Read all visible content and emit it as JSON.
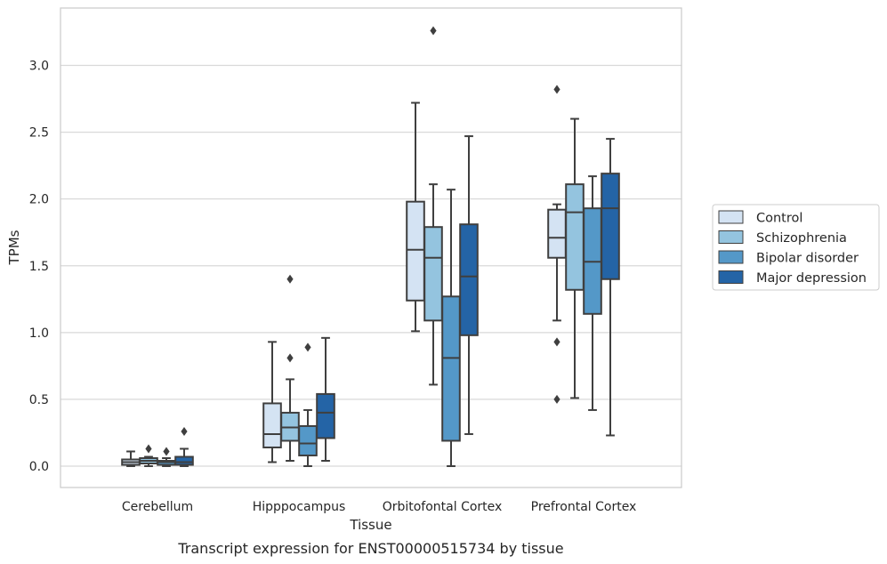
{
  "chart_data": {
    "type": "box",
    "caption": "Transcript expression for ENST00000515734 by tissue",
    "xlabel": "Tissue",
    "ylabel": "TPMs",
    "ylim": [
      -0.16,
      3.44
    ],
    "yticks": [
      0.0,
      0.5,
      1.0,
      1.5,
      2.0,
      2.5,
      3.0
    ],
    "ytick_labels": [
      "0.0",
      "0.5",
      "1.0",
      "1.5",
      "2.0",
      "2.5",
      "3.0"
    ],
    "grid": "horizontal",
    "legend_position": "right",
    "categories": [
      "Cerebellum",
      "Hipppocampus",
      "Orbitofontal Cortex",
      "Prefrontal Cortex"
    ],
    "series": [
      {
        "name": "Control",
        "color": "#d4e3f3",
        "boxes": [
          {
            "whislo": 0.0,
            "q1": 0.01,
            "med": 0.03,
            "q3": 0.05,
            "whishi": 0.11,
            "fliers": []
          },
          {
            "whislo": 0.03,
            "q1": 0.14,
            "med": 0.24,
            "q3": 0.47,
            "whishi": 0.93,
            "fliers": []
          },
          {
            "whislo": 1.01,
            "q1": 1.24,
            "med": 1.62,
            "q3": 1.98,
            "whishi": 2.72,
            "fliers": []
          },
          {
            "whislo": 1.09,
            "q1": 1.56,
            "med": 1.71,
            "q3": 1.92,
            "whishi": 1.96,
            "fliers": [
              0.5,
              0.93,
              2.82
            ]
          }
        ]
      },
      {
        "name": "Schizophrenia",
        "color": "#94c4df",
        "boxes": [
          {
            "whislo": 0.0,
            "q1": 0.02,
            "med": 0.04,
            "q3": 0.06,
            "whishi": 0.07,
            "fliers": [
              0.13
            ]
          },
          {
            "whislo": 0.04,
            "q1": 0.19,
            "med": 0.29,
            "q3": 0.4,
            "whishi": 0.65,
            "fliers": [
              0.81,
              1.4
            ]
          },
          {
            "whislo": 0.61,
            "q1": 1.09,
            "med": 1.56,
            "q3": 1.79,
            "whishi": 2.11,
            "fliers": [
              3.26
            ]
          },
          {
            "whislo": 0.51,
            "q1": 1.32,
            "med": 1.9,
            "q3": 2.11,
            "whishi": 2.6,
            "fliers": []
          }
        ]
      },
      {
        "name": "Bipolar disorder",
        "color": "#5498c8",
        "boxes": [
          {
            "whislo": 0.0,
            "q1": 0.01,
            "med": 0.03,
            "q3": 0.04,
            "whishi": 0.06,
            "fliers": [
              0.11
            ]
          },
          {
            "whislo": 0.0,
            "q1": 0.08,
            "med": 0.17,
            "q3": 0.3,
            "whishi": 0.42,
            "fliers": [
              0.89
            ]
          },
          {
            "whislo": 0.0,
            "q1": 0.19,
            "med": 0.81,
            "q3": 1.27,
            "whishi": 2.07,
            "fliers": []
          },
          {
            "whislo": 0.42,
            "q1": 1.14,
            "med": 1.53,
            "q3": 1.93,
            "whishi": 2.17,
            "fliers": []
          }
        ]
      },
      {
        "name": "Major depression",
        "color": "#2464a6",
        "boxes": [
          {
            "whislo": 0.0,
            "q1": 0.01,
            "med": 0.03,
            "q3": 0.07,
            "whishi": 0.13,
            "fliers": [
              0.26
            ]
          },
          {
            "whislo": 0.04,
            "q1": 0.21,
            "med": 0.4,
            "q3": 0.54,
            "whishi": 0.96,
            "fliers": []
          },
          {
            "whislo": 0.24,
            "q1": 0.98,
            "med": 1.42,
            "q3": 1.81,
            "whishi": 2.47,
            "fliers": []
          },
          {
            "whislo": 0.23,
            "q1": 1.4,
            "med": 1.93,
            "q3": 2.19,
            "whishi": 2.45,
            "fliers": []
          }
        ]
      }
    ]
  }
}
